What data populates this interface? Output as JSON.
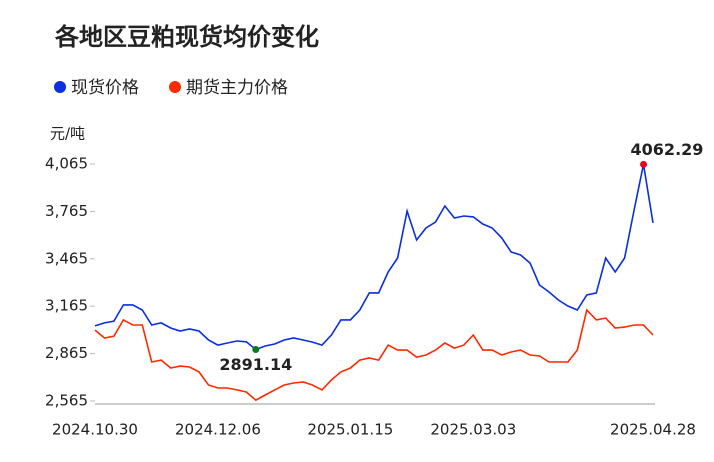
{
  "chart_data": {
    "type": "line",
    "title": "各地区豆粕现货均价变化",
    "y_label": "元/吨",
    "categories": [
      "2024.10.30",
      null,
      null,
      null,
      null,
      null,
      null,
      null,
      null,
      null,
      null,
      null,
      null,
      "2024.12.06",
      null,
      null,
      null,
      null,
      null,
      null,
      null,
      null,
      null,
      null,
      null,
      null,
      null,
      "2025.01.15",
      null,
      null,
      null,
      null,
      null,
      null,
      null,
      null,
      null,
      null,
      null,
      null,
      "2025.03.03",
      null,
      null,
      null,
      null,
      null,
      null,
      null,
      null,
      null,
      null,
      null,
      null,
      null,
      null,
      null,
      null,
      null,
      null,
      "2025.04.28"
    ],
    "series": [
      {
        "name": "现货价格",
        "color": "#0a2ee0",
        "values": [
          3040,
          3059,
          3071,
          3173,
          3173,
          3141,
          3046,
          3059,
          3027,
          3008,
          3021,
          3008,
          2951,
          2919,
          2932,
          2945,
          2940,
          2891.14,
          2913,
          2926,
          2951,
          2964,
          2951,
          2938,
          2919,
          2983,
          3078,
          3078,
          3141,
          3249,
          3249,
          3382,
          3470,
          3767,
          3584,
          3660,
          3698,
          3799,
          3723,
          3736,
          3730,
          3685,
          3660,
          3597,
          3508,
          3489,
          3438,
          3299,
          3255,
          3204,
          3166,
          3141,
          3236,
          3249,
          3470,
          3382,
          3470,
          3774,
          4062.29,
          3692
        ]
      },
      {
        "name": "期货主力价格",
        "color": "#ff2a00",
        "values": [
          3014,
          2964,
          2976,
          3078,
          3046,
          3046,
          2812,
          2824,
          2774,
          2786,
          2780,
          2749,
          2666,
          2647,
          2647,
          2635,
          2622,
          2571,
          2603,
          2635,
          2666,
          2679,
          2685,
          2666,
          2635,
          2698,
          2749,
          2774,
          2824,
          2837,
          2824,
          2919,
          2887,
          2887,
          2843,
          2856,
          2887,
          2932,
          2900,
          2919,
          2983,
          2887,
          2887,
          2856,
          2875,
          2887,
          2856,
          2850,
          2812,
          2812,
          2812,
          2887,
          3141,
          3078,
          3090,
          3027,
          3033,
          3046,
          3046,
          2983
        ]
      }
    ],
    "max_color": "#e8001c",
    "min_color": "#0a7a1e",
    "ylim": [
      2565,
      4065
    ],
    "yticks": [
      {
        "value": 2565,
        "label": "2,565"
      },
      {
        "value": 2865,
        "label": "2,865"
      },
      {
        "value": 3165,
        "label": "3,165"
      },
      {
        "value": 3465,
        "label": "3,465"
      },
      {
        "value": 3765,
        "label": "3,765"
      },
      {
        "value": 4065,
        "label": "4,065"
      }
    ],
    "grid": false
  }
}
